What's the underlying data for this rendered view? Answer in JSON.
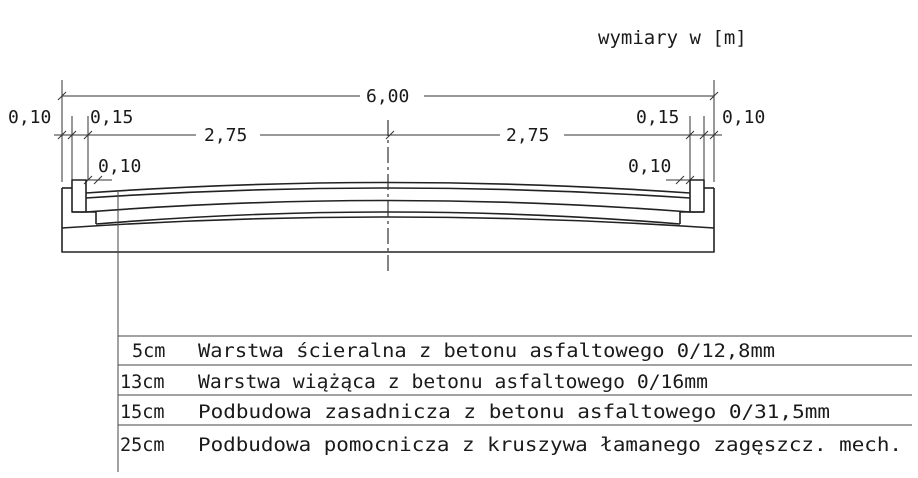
{
  "units_label": "wymiary w [m]",
  "dimensions": {
    "total_width": "6,00",
    "left_outer": "0,10",
    "left_curb": "0,15",
    "left_lane": "2,75",
    "right_lane": "2,75",
    "right_curb": "0,15",
    "right_outer": "0,10",
    "left_inner": "0,10",
    "right_inner": "0,10"
  },
  "layers": [
    {
      "thickness": "5cm",
      "description": "Warstwa ścieralna z betonu asfaltowego 0/12,8mm"
    },
    {
      "thickness": "13cm",
      "description": "Warstwa wiążąca z betonu asfaltowego 0/16mm"
    },
    {
      "thickness": "15cm",
      "description": "Podbudowa zasadnicza z betonu asfaltowego 0/31,5mm"
    },
    {
      "thickness": "25cm",
      "description": "Podbudowa pomocnicza z kruszywa łamanego zagęszcz. mech."
    }
  ]
}
